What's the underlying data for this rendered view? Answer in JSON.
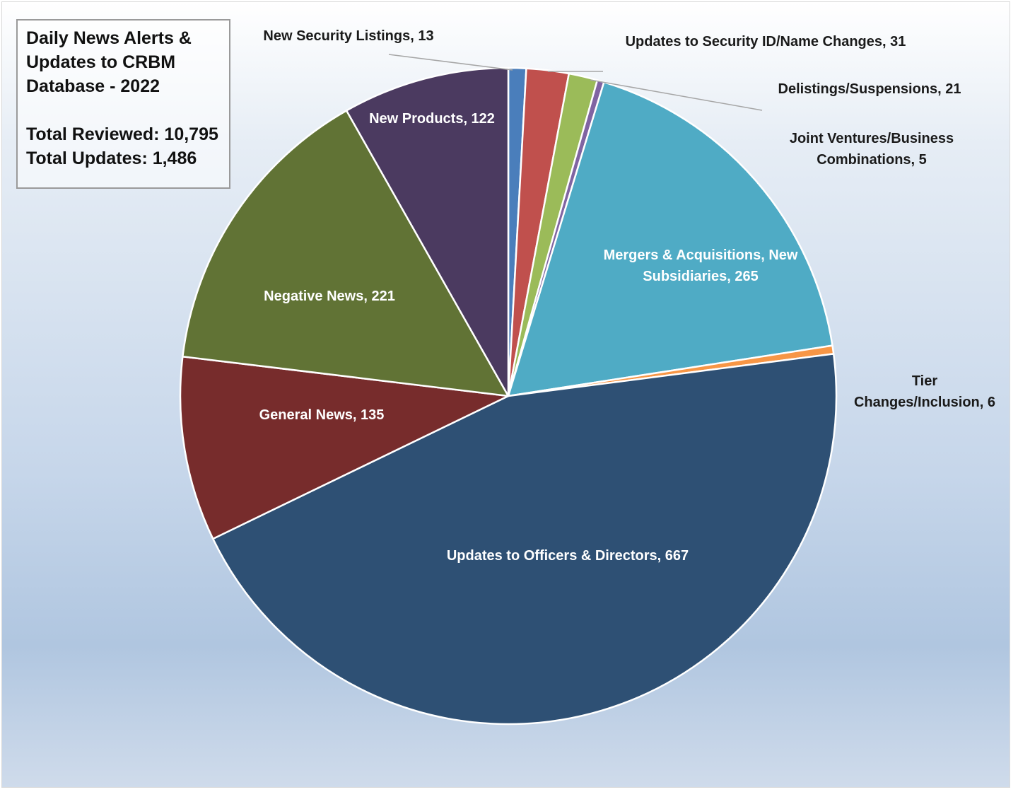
{
  "info_box": {
    "title": "Daily News Alerts &\nUpdates to CRBM\nDatabase - 2022",
    "total_reviewed": "Total Reviewed: 10,795",
    "total_updates": "Total Updates: 1,486"
  },
  "chart_data": {
    "type": "pie",
    "title": "Daily News Alerts & Updates to CRBM Database - 2022",
    "slices": [
      {
        "label": "New Security Listings",
        "value": 13,
        "color": "#4a7ebb",
        "display": "New Security Listings, 13"
      },
      {
        "label": "Updates to Security ID/Name Changes",
        "value": 31,
        "color": "#c0504d",
        "display": "Updates to Security ID/Name Changes, 31"
      },
      {
        "label": "Delistings/Suspensions",
        "value": 21,
        "color": "#9bbb59",
        "display": "Delistings/Suspensions, 21"
      },
      {
        "label": "Joint Ventures/Business Combinations",
        "value": 5,
        "color": "#8064a2",
        "display": "Joint Ventures/Business\nCombinations, 5"
      },
      {
        "label": "Mergers & Acquisitions, New Subsidiaries",
        "value": 265,
        "color": "#4fabc5",
        "display": "Mergers & Acquisitions, New\nSubsidiaries, 265"
      },
      {
        "label": "Tier Changes/Inclusion",
        "value": 6,
        "color": "#f79646",
        "display": "Tier\nChanges/Inclusion, 6"
      },
      {
        "label": "Updates to Officers & Directors",
        "value": 667,
        "color": "#2e5074",
        "display": "Updates to Officers & Directors, 667"
      },
      {
        "label": "General News",
        "value": 135,
        "color": "#772c2c",
        "display": "General News, 135"
      },
      {
        "label": "Negative News",
        "value": 221,
        "color": "#617335",
        "display": "Negative News, 221"
      },
      {
        "label": "New Products",
        "value": 122,
        "color": "#4b3a60",
        "display": "New Products, 122"
      }
    ]
  }
}
